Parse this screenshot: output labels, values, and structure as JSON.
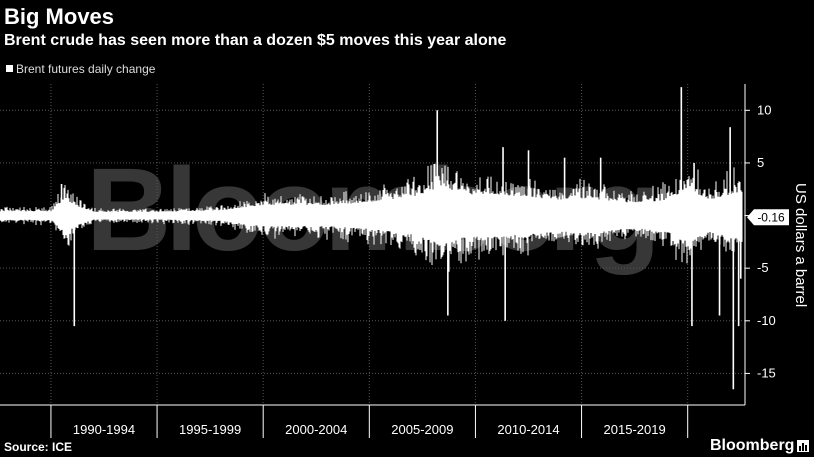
{
  "title": "Big Moves",
  "subtitle": "Brent crude has seen more than a dozen $5 moves this year alone",
  "legend_label": "Brent futures daily change",
  "watermark": "Bloomberg",
  "source": "Source: ICE",
  "brand": "Bloomberg",
  "chart_data": {
    "type": "bar",
    "title": "Big Moves",
    "subtitle": "Brent crude has seen more than a dozen $5 moves this year alone",
    "xlabel": "",
    "ylabel": "US dollars a barrel",
    "ylim": [
      -18,
      12.5
    ],
    "yticks": [
      10,
      5,
      0,
      -5,
      -10,
      -15
    ],
    "ytick_labels": [
      "10",
      "5",
      "",
      "-5",
      "-10",
      "-15"
    ],
    "x_periods": [
      "1990-1994",
      "1995-1999",
      "2000-2004",
      "2005-2009",
      "2010-2014",
      "2015-2019"
    ],
    "xlim": [
      1987.6,
      2022.7
    ],
    "grid": true,
    "legend_position": "top-left",
    "last_value_label": "-0.16",
    "last_value": -0.16,
    "series": [
      {
        "name": "Brent futures daily change",
        "color": "#ffffff",
        "envelope_years": [
          1988,
          1990,
          1990.6,
          1990.9,
          1991.1,
          1992,
          1995,
          1998,
          2000,
          2003,
          2005,
          2007,
          2008.5,
          2009.5,
          2011,
          2012.5,
          2014,
          2015,
          2016,
          2017,
          2018,
          2019,
          2020,
          2021,
          2022.5
        ],
        "envelope_amplitude": [
          0.8,
          0.8,
          3.0,
          2.5,
          2.0,
          0.7,
          0.7,
          1.0,
          2.0,
          2.0,
          2.5,
          3.5,
          5.5,
          4.0,
          4.0,
          3.5,
          3.0,
          3.2,
          3.0,
          2.5,
          2.5,
          3.0,
          5.0,
          3.0,
          4.5
        ],
        "spikes": [
          {
            "x": 1990.5,
            "y": 3.0
          },
          {
            "x": 1991.1,
            "y": -10.5
          },
          {
            "x": 2008.2,
            "y": 10.0
          },
          {
            "x": 2008.7,
            "y": -9.5
          },
          {
            "x": 2011.3,
            "y": 6.5
          },
          {
            "x": 2011.4,
            "y": -10.0
          },
          {
            "x": 2012.5,
            "y": 6.2
          },
          {
            "x": 2014.2,
            "y": 5.5
          },
          {
            "x": 2015.9,
            "y": 5.5
          },
          {
            "x": 2019.7,
            "y": 12.2
          },
          {
            "x": 2020.2,
            "y": -10.5
          },
          {
            "x": 2020.3,
            "y": 5.0
          },
          {
            "x": 2021.5,
            "y": -9.5
          },
          {
            "x": 2022.0,
            "y": 8.4
          },
          {
            "x": 2022.15,
            "y": -16.5
          },
          {
            "x": 2022.4,
            "y": -10.5
          },
          {
            "x": 2022.5,
            "y": -6.0
          }
        ]
      }
    ]
  }
}
